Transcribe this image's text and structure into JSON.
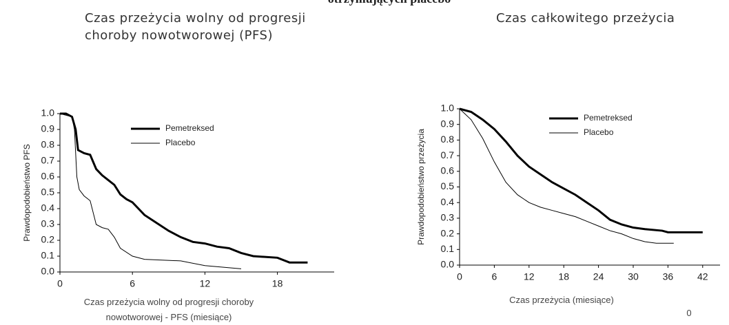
{
  "page_title": "otrzymujących placebo",
  "chart_data": [
    {
      "type": "line",
      "title": "Czas przeżycia wolny od progresji choroby nowotworowej (PFS)",
      "xlabel": "Czas przeżycia wolny od progresji choroby nowotworowej - PFS (miesiące)",
      "ylabel": "Prawdopodobieństwo PFS",
      "xlim": [
        0,
        22.7
      ],
      "xticks": [
        0,
        6,
        12,
        18
      ],
      "ylim": [
        0,
        1
      ],
      "yticks": [
        {
          "value": 0,
          "label": "0.0"
        },
        0.1,
        0.2,
        0.3,
        0.4,
        0.5,
        0.6,
        0.7,
        0.8,
        0.9,
        {
          "value": 1,
          "label": "1.0"
        }
      ],
      "legend": "upper center",
      "series": [
        {
          "name": "Pemetreksed",
          "color": "#000000",
          "style": "thick",
          "x": [
            0,
            0.5,
            1,
            1.3,
            1.5,
            2,
            2.5,
            3,
            3.5,
            4,
            4.5,
            5,
            5.5,
            6,
            6.5,
            7,
            8,
            9,
            10,
            11,
            12,
            13,
            14,
            15,
            16,
            18,
            19,
            20.5
          ],
          "values": [
            1,
            1,
            0.98,
            0.9,
            0.77,
            0.75,
            0.74,
            0.65,
            0.61,
            0.58,
            0.55,
            0.49,
            0.46,
            0.44,
            0.4,
            0.36,
            0.31,
            0.26,
            0.22,
            0.19,
            0.18,
            0.16,
            0.15,
            0.12,
            0.1,
            0.09,
            0.06,
            0.06
          ]
        },
        {
          "name": "Placebo",
          "color": "#000000",
          "style": "thin",
          "x": [
            0,
            1,
            1.2,
            1.4,
            1.6,
            2,
            2.5,
            3,
            3.5,
            4,
            4.5,
            5,
            6,
            7,
            10,
            12,
            15
          ],
          "values": [
            1,
            0.98,
            0.9,
            0.6,
            0.52,
            0.48,
            0.45,
            0.3,
            0.28,
            0.27,
            0.22,
            0.15,
            0.1,
            0.08,
            0.07,
            0.04,
            0.02
          ]
        }
      ]
    },
    {
      "type": "line",
      "title": "Czas całkowitego przeżycia",
      "xlabel": "Czas przeżycia (miesiące)",
      "ylabel": "Prawdopodobieństwo przeżycia",
      "annotation": "0",
      "xlim": [
        0,
        45
      ],
      "xticks": [
        0,
        6,
        12,
        18,
        24,
        30,
        36,
        42
      ],
      "ylim": [
        0,
        1
      ],
      "yticks": [
        {
          "value": 0,
          "label": "0.0"
        },
        0.1,
        0.2,
        0.3,
        0.4,
        0.5,
        0.6,
        0.7,
        0.8,
        0.9,
        {
          "value": 1,
          "label": "1.0"
        }
      ],
      "legend": "upper center",
      "series": [
        {
          "name": "Pemetreksed",
          "color": "#000000",
          "style": "thick",
          "x": [
            0,
            2,
            4,
            6,
            8,
            10,
            12,
            14,
            16,
            18,
            20,
            22,
            24,
            26,
            28,
            30,
            32,
            35,
            36,
            42
          ],
          "values": [
            1,
            0.98,
            0.93,
            0.87,
            0.79,
            0.7,
            0.63,
            0.58,
            0.53,
            0.49,
            0.45,
            0.4,
            0.35,
            0.29,
            0.26,
            0.24,
            0.23,
            0.22,
            0.21,
            0.21
          ]
        },
        {
          "name": "Placebo",
          "color": "#000000",
          "style": "thin",
          "x": [
            0,
            2,
            4,
            6,
            8,
            10,
            12,
            14,
            16,
            18,
            20,
            22,
            24,
            26,
            28,
            30,
            32,
            34,
            37
          ],
          "values": [
            1,
            0.93,
            0.81,
            0.66,
            0.53,
            0.45,
            0.4,
            0.37,
            0.35,
            0.33,
            0.31,
            0.28,
            0.25,
            0.22,
            0.2,
            0.17,
            0.15,
            0.14,
            0.14
          ]
        }
      ]
    }
  ]
}
